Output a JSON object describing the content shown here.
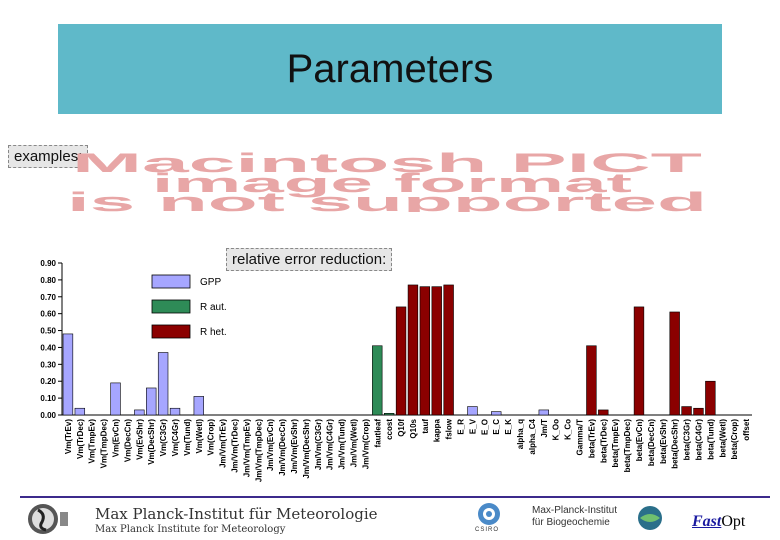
{
  "slide": {
    "title": "Parameters",
    "examples_label": "examples:",
    "pict_lines": [
      "Macintosh PICT",
      "image format",
      "is not supported"
    ],
    "error_label": "relative error reduction:"
  },
  "footer": {
    "mpi_line1": "Max Planck-Institut für Meteorologie",
    "mpi_line2": "Max Planck Institute for Meteorology",
    "mpb_line1": "Max-Planck-Institut",
    "mpb_line2": "für Biogeochemie",
    "csiro": "CSIRO",
    "fast": "Fast",
    "opt": "Opt"
  },
  "colors": {
    "title_bg": "#5fb9c9",
    "gpp": "#a6a6ff",
    "r_aut": "#2e8b57",
    "r_het": "#8b0000",
    "footer_line": "#3c2a8c"
  },
  "chart_data": {
    "type": "bar",
    "ylim": [
      0,
      0.9
    ],
    "yticks": [
      "0.00",
      "0.10",
      "0.20",
      "0.30",
      "0.40",
      "0.50",
      "0.60",
      "0.70",
      "0.80",
      "0.90"
    ],
    "grid": false,
    "legend_placement": "top-left",
    "legend": [
      {
        "name": "GPP",
        "group": "gpp"
      },
      {
        "name": "R aut.",
        "group": "r_aut"
      },
      {
        "name": "R het.",
        "group": "r_het"
      }
    ],
    "bars": [
      {
        "label": "Vm(TrEv)",
        "value": 0.48,
        "group": "gpp"
      },
      {
        "label": "Vm(TrDec)",
        "value": 0.04,
        "group": "gpp"
      },
      {
        "label": "Vm(TmpEv)",
        "value": 0.0,
        "group": "gpp"
      },
      {
        "label": "Vm(TmpDec)",
        "value": 0.0,
        "group": "gpp"
      },
      {
        "label": "Vm(EvCn)",
        "value": 0.19,
        "group": "gpp"
      },
      {
        "label": "Vm(DecCn)",
        "value": 0.0,
        "group": "gpp"
      },
      {
        "label": "Vm(EvShr)",
        "value": 0.03,
        "group": "gpp"
      },
      {
        "label": "Vm(DecShr)",
        "value": 0.16,
        "group": "gpp"
      },
      {
        "label": "Vm(C3Gr)",
        "value": 0.37,
        "group": "gpp"
      },
      {
        "label": "Vm(C4Gr)",
        "value": 0.04,
        "group": "gpp"
      },
      {
        "label": "Vm(Tund)",
        "value": 0.0,
        "group": "gpp"
      },
      {
        "label": "Vm(Wetl)",
        "value": 0.11,
        "group": "gpp"
      },
      {
        "label": "Vm(Crop)",
        "value": 0.0,
        "group": "gpp"
      },
      {
        "label": "Jm/Vm(TrEv)",
        "value": 0.0,
        "group": "gpp"
      },
      {
        "label": "Jm/Vm(TrDec)",
        "value": 0.0,
        "group": "gpp"
      },
      {
        "label": "Jm/Vm(TmpEv)",
        "value": 0.0,
        "group": "gpp"
      },
      {
        "label": "Jm/Vm(TmpDec)",
        "value": 0.0,
        "group": "gpp"
      },
      {
        "label": "Jm/Vm(EvCn)",
        "value": 0.0,
        "group": "gpp"
      },
      {
        "label": "Jm/Vm(DecCn)",
        "value": 0.0,
        "group": "gpp"
      },
      {
        "label": "Jm/Vm(EvShr)",
        "value": 0.0,
        "group": "gpp"
      },
      {
        "label": "Jm/Vm(DecShr)",
        "value": 0.0,
        "group": "gpp"
      },
      {
        "label": "Jm/Vm(C3Gr)",
        "value": 0.0,
        "group": "gpp"
      },
      {
        "label": "Jm/Vm(C4Gr)",
        "value": 0.0,
        "group": "gpp"
      },
      {
        "label": "Jm/Vm(Tund)",
        "value": 0.0,
        "group": "gpp"
      },
      {
        "label": "Jm/Vm(Wetl)",
        "value": 0.0,
        "group": "gpp"
      },
      {
        "label": "Jm/Vm(Crop)",
        "value": 0.0,
        "group": "gpp"
      },
      {
        "label": "fautleaf",
        "value": 0.41,
        "group": "r_aut"
      },
      {
        "label": "ccost",
        "value": 0.01,
        "group": "r_aut"
      },
      {
        "label": "Q10f",
        "value": 0.64,
        "group": "r_het"
      },
      {
        "label": "Q10s",
        "value": 0.77,
        "group": "r_het"
      },
      {
        "label": "tauf",
        "value": 0.76,
        "group": "r_het"
      },
      {
        "label": "kappa",
        "value": 0.76,
        "group": "r_het"
      },
      {
        "label": "fslow",
        "value": 0.77,
        "group": "r_het"
      },
      {
        "label": "E_R",
        "value": 0.0,
        "group": "gpp"
      },
      {
        "label": "E_V",
        "value": 0.05,
        "group": "gpp"
      },
      {
        "label": "E_O",
        "value": 0.0,
        "group": "gpp"
      },
      {
        "label": "E_C",
        "value": 0.02,
        "group": "gpp"
      },
      {
        "label": "E_K",
        "value": 0.0,
        "group": "gpp"
      },
      {
        "label": "alpha_q",
        "value": 0.0,
        "group": "gpp"
      },
      {
        "label": "alpha_C4",
        "value": 0.0,
        "group": "gpp"
      },
      {
        "label": "Jm/T",
        "value": 0.03,
        "group": "gpp"
      },
      {
        "label": "K_Oo",
        "value": 0.0,
        "group": "gpp"
      },
      {
        "label": "K_Co",
        "value": 0.0,
        "group": "gpp"
      },
      {
        "label": "Gamma/T",
        "value": 0.0,
        "group": "gpp"
      },
      {
        "label": "beta(TrEv)",
        "value": 0.41,
        "group": "r_het"
      },
      {
        "label": "beta(TrDec)",
        "value": 0.03,
        "group": "r_het"
      },
      {
        "label": "beta(TmpEv)",
        "value": 0.0,
        "group": "r_het"
      },
      {
        "label": "beta(TmpDec)",
        "value": 0.0,
        "group": "r_het"
      },
      {
        "label": "beta(EvCn)",
        "value": 0.64,
        "group": "r_het"
      },
      {
        "label": "beta(DecCn)",
        "value": 0.0,
        "group": "r_het"
      },
      {
        "label": "beta(EvShr)",
        "value": 0.0,
        "group": "r_het"
      },
      {
        "label": "beta(DecShr)",
        "value": 0.61,
        "group": "r_het"
      },
      {
        "label": "beta(C3Gr)",
        "value": 0.05,
        "group": "r_het"
      },
      {
        "label": "beta(C4Gr)",
        "value": 0.04,
        "group": "r_het"
      },
      {
        "label": "beta(Tund)",
        "value": 0.2,
        "group": "r_het"
      },
      {
        "label": "beta(Wetl)",
        "value": 0.0,
        "group": "r_het"
      },
      {
        "label": "beta(Crop)",
        "value": 0.0,
        "group": "r_het"
      },
      {
        "label": "offset",
        "value": 0.0,
        "group": "r_het"
      }
    ]
  }
}
